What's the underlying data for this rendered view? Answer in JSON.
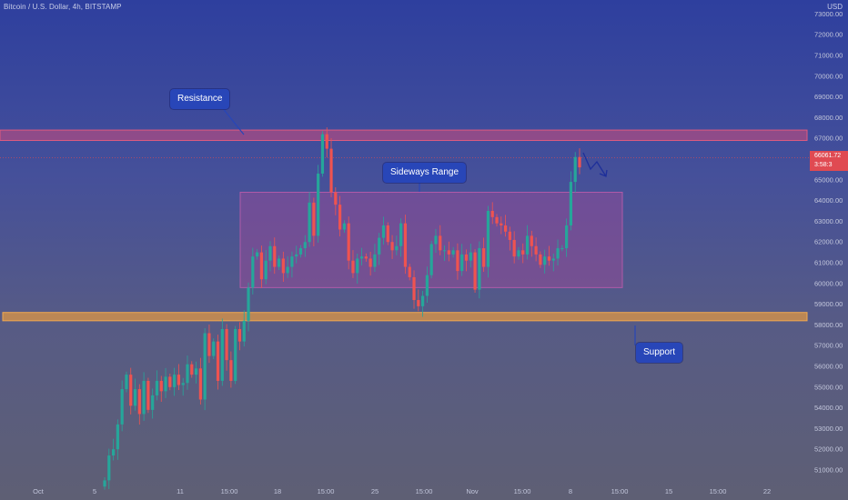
{
  "header": {
    "symbol_title": "Bitcoin / U.S. Dollar, 4h, BITSTAMP",
    "currency": "USD"
  },
  "price_tag": {
    "value": "66061.72",
    "countdown": "3:58:3"
  },
  "annotations": {
    "resistance": "Resistance",
    "sideways": "Sideways Range",
    "support": "Support"
  },
  "colors": {
    "up_candle": "#26a69a",
    "down_candle": "#ef5350",
    "resistance_zone": "#d04a7a",
    "range_box": "#a04a9a",
    "support_zone": "#e89a40",
    "callout": "#2846b8",
    "price_tag": "#e04a52"
  },
  "chart_data": {
    "type": "candlestick",
    "title": "Bitcoin / U.S. Dollar, 4h, BITSTAMP",
    "ylim": [
      50500,
      73000
    ],
    "y_ticks": [
      "51000.00",
      "52000.00",
      "53000.00",
      "54000.00",
      "55000.00",
      "56000.00",
      "57000.00",
      "58000.00",
      "59000.00",
      "60000.00",
      "61000.00",
      "62000.00",
      "63000.00",
      "64000.00",
      "65000.00",
      "66000.00",
      "67000.00",
      "68000.00",
      "69000.00",
      "70000.00",
      "71000.00",
      "72000.00",
      "73000.00"
    ],
    "x_ticks": [
      "Oct",
      "5",
      "11",
      "15:00",
      "18",
      "15:00",
      "25",
      "15:00",
      "Nov",
      "15:00",
      "8",
      "15:00",
      "15",
      "15:00",
      "22"
    ],
    "closes": [
      50500,
      51700,
      52000,
      53200,
      54900,
      55600,
      54100,
      54900,
      53700,
      55300,
      53900,
      54600,
      55300,
      54800,
      55500,
      55000,
      55600,
      55100,
      55200,
      56100,
      55600,
      55900,
      54400,
      57600,
      56500,
      57200,
      55300,
      57800,
      56300,
      55300,
      57800,
      57200,
      58200,
      59800,
      61300,
      61500,
      60200,
      61100,
      61800,
      60800,
      61200,
      60500,
      60800,
      61300,
      61400,
      61700,
      62000,
      63900,
      62300,
      65300,
      67200,
      66500,
      64400,
      63800,
      62600,
      62900,
      61100,
      60500,
      61200,
      61300,
      61200,
      60800,
      61400,
      62200,
      62800,
      62000,
      61600,
      61800,
      62900,
      60800,
      60300,
      59200,
      58900,
      59400,
      60400,
      61900,
      62300,
      61600,
      61600,
      61400,
      61600,
      60600,
      61400,
      61100,
      61500,
      59700,
      61700,
      60800,
      63500,
      63200,
      62900,
      62800,
      62500,
      62100,
      61300,
      61600,
      61400,
      62300,
      61800,
      61400,
      60900,
      61300,
      61100,
      61200,
      61700,
      61700,
      62800,
      64900,
      66100,
      65600
    ],
    "resistance_zone": [
      66900,
      67400
    ],
    "sideways_range": [
      59800,
      64400
    ],
    "support_zone": [
      58200,
      58600
    ],
    "last_price": 66061.72
  }
}
